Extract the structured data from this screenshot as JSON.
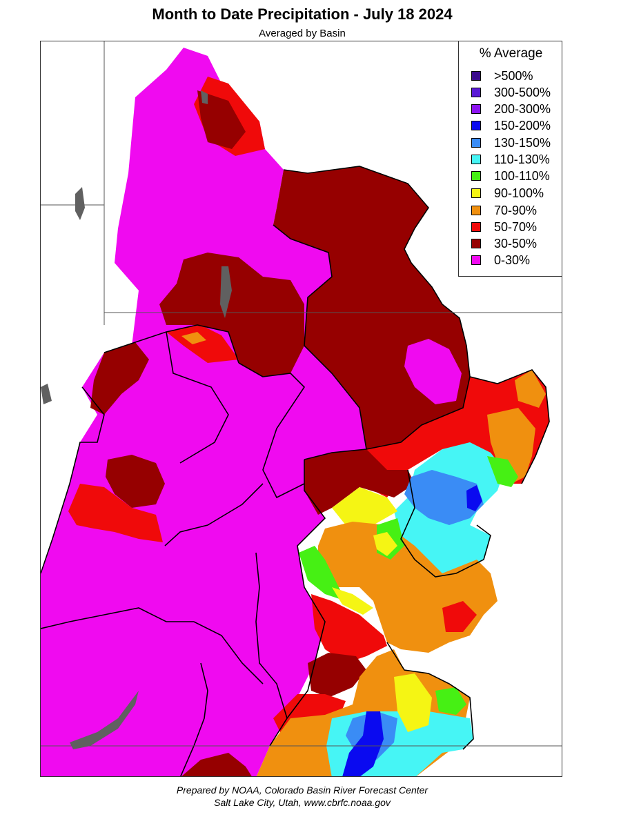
{
  "title": "Month to Date Precipitation - July 18 2024",
  "subtitle": "Averaged by Basin",
  "legend": {
    "title": "% Average",
    "items": [
      {
        "label": ">500%",
        "color": "#3a0a8c"
      },
      {
        "label": "300-500%",
        "color": "#5a1ad6"
      },
      {
        "label": "200-300%",
        "color": "#8c14f0"
      },
      {
        "label": "150-200%",
        "color": "#0a0af0"
      },
      {
        "label": "130-150%",
        "color": "#3a8cf5"
      },
      {
        "label": "110-130%",
        "color": "#46f5f5"
      },
      {
        "label": "100-110%",
        "color": "#46f014"
      },
      {
        "label": "90-100%",
        "color": "#f5f514"
      },
      {
        "label": "70-90%",
        "color": "#f0900f"
      },
      {
        "label": "50-70%",
        "color": "#f00a0a"
      },
      {
        "label": "30-50%",
        "color": "#960000"
      },
      {
        "label": "0-30%",
        "color": "#f00af0"
      }
    ]
  },
  "footer": {
    "line1": "Prepared by NOAA, Colorado Basin River Forecast Center",
    "line2": "Salt Lake City, Utah, www.cbrfc.noaa.gov"
  }
}
